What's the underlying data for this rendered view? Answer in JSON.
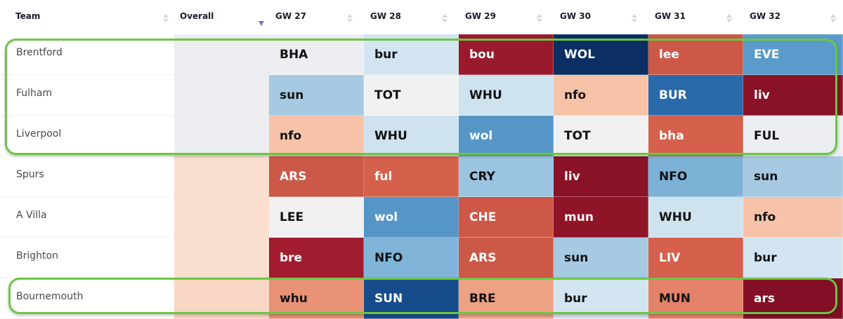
{
  "header": {
    "columns": [
      {
        "label": "Team",
        "sort": "none"
      },
      {
        "label": "Overall",
        "sort": "descending"
      },
      {
        "label": "GW 27",
        "sort": "none"
      },
      {
        "label": "GW 28",
        "sort": "none"
      },
      {
        "label": "GW 29",
        "sort": "none"
      },
      {
        "label": "GW 30",
        "sort": "none"
      },
      {
        "label": "GW 31",
        "sort": "none"
      },
      {
        "label": "GW 32",
        "sort": "none"
      }
    ]
  },
  "colors": {
    "highlight_border": "#6cc644",
    "sort_active": "#6f74c4"
  },
  "rows": [
    {
      "team": "Brentford",
      "overall_color": "#eceef1",
      "highlighted": true,
      "fixtures": [
        {
          "opp": "BHA",
          "bg": "#eceef1",
          "text": "light"
        },
        {
          "opp": "bur",
          "bg": "#d2e5f0",
          "text": "light"
        },
        {
          "opp": "bou",
          "bg": "#991a2c",
          "text": "dark"
        },
        {
          "opp": "WOL",
          "bg": "#0b2f62",
          "text": "dark"
        },
        {
          "opp": "lee",
          "bg": "#cd5848",
          "text": "dark"
        },
        {
          "opp": "EVE",
          "bg": "#5a9bcb",
          "text": "dark"
        }
      ]
    },
    {
      "team": "Fulham",
      "overall_color": "#eceef1",
      "highlighted": true,
      "fixtures": [
        {
          "opp": "sun",
          "bg": "#a5cae2",
          "text": "light"
        },
        {
          "opp": "TOT",
          "bg": "#f1f1f1",
          "text": "light"
        },
        {
          "opp": "WHU",
          "bg": "#cfe3ef",
          "text": "light"
        },
        {
          "opp": "nfo",
          "bg": "#f7c3a8",
          "text": "light"
        },
        {
          "opp": "BUR",
          "bg": "#2b6aaa",
          "text": "dark"
        },
        {
          "opp": "liv",
          "bg": "#8a1226",
          "text": "dark"
        }
      ]
    },
    {
      "team": "Liverpool",
      "overall_color": "#eceef1",
      "highlighted": true,
      "fixtures": [
        {
          "opp": "nfo",
          "bg": "#f7c3a8",
          "text": "light"
        },
        {
          "opp": "WHU",
          "bg": "#cfe3ef",
          "text": "light"
        },
        {
          "opp": "wol",
          "bg": "#5596c7",
          "text": "dark"
        },
        {
          "opp": "TOT",
          "bg": "#f1f1f1",
          "text": "light"
        },
        {
          "opp": "bha",
          "bg": "#d5604c",
          "text": "dark"
        },
        {
          "opp": "FUL",
          "bg": "#eceef1",
          "text": "light"
        }
      ]
    },
    {
      "team": "Spurs",
      "overall_color": "#fadfd0",
      "highlighted": false,
      "fixtures": [
        {
          "opp": "ARS",
          "bg": "#cc5848",
          "text": "dark"
        },
        {
          "opp": "ful",
          "bg": "#d5604c",
          "text": "dark"
        },
        {
          "opp": "CRY",
          "bg": "#9ac4e0",
          "text": "light"
        },
        {
          "opp": "liv",
          "bg": "#8a1226",
          "text": "dark"
        },
        {
          "opp": "NFO",
          "bg": "#7db2d7",
          "text": "light"
        },
        {
          "opp": "sun",
          "bg": "#a5cae2",
          "text": "light"
        }
      ]
    },
    {
      "team": "A Villa",
      "overall_color": "#fadfd0",
      "highlighted": false,
      "fixtures": [
        {
          "opp": "LEE",
          "bg": "#f1f1f1",
          "text": "light"
        },
        {
          "opp": "wol",
          "bg": "#5596c7",
          "text": "dark"
        },
        {
          "opp": "CHE",
          "bg": "#cd5848",
          "text": "dark"
        },
        {
          "opp": "mun",
          "bg": "#8f1428",
          "text": "dark"
        },
        {
          "opp": "WHU",
          "bg": "#cfe3ef",
          "text": "light"
        },
        {
          "opp": "nfo",
          "bg": "#f7c3a8",
          "text": "light"
        }
      ]
    },
    {
      "team": "Brighton",
      "overall_color": "#fadfd0",
      "highlighted": false,
      "fixtures": [
        {
          "opp": "bre",
          "bg": "#a11c2e",
          "text": "dark"
        },
        {
          "opp": "NFO",
          "bg": "#80b5d9",
          "text": "light"
        },
        {
          "opp": "ARS",
          "bg": "#cc5848",
          "text": "dark"
        },
        {
          "opp": "sun",
          "bg": "#a5cae2",
          "text": "light"
        },
        {
          "opp": "LIV",
          "bg": "#d5604c",
          "text": "dark"
        },
        {
          "opp": "bur",
          "bg": "#d2e5f0",
          "text": "light"
        }
      ]
    },
    {
      "team": "Bournemouth",
      "overall_color": "#f8d6c4",
      "highlighted": true,
      "fixtures": [
        {
          "opp": "whu",
          "bg": "#e99275",
          "text": "light"
        },
        {
          "opp": "SUN",
          "bg": "#174c8a",
          "text": "dark"
        },
        {
          "opp": "BRE",
          "bg": "#eda284",
          "text": "light"
        },
        {
          "opp": "bur",
          "bg": "#d2e5f0",
          "text": "light"
        },
        {
          "opp": "MUN",
          "bg": "#e4826a",
          "text": "light"
        },
        {
          "opp": "ars",
          "bg": "#820f25",
          "text": "dark"
        }
      ]
    }
  ]
}
